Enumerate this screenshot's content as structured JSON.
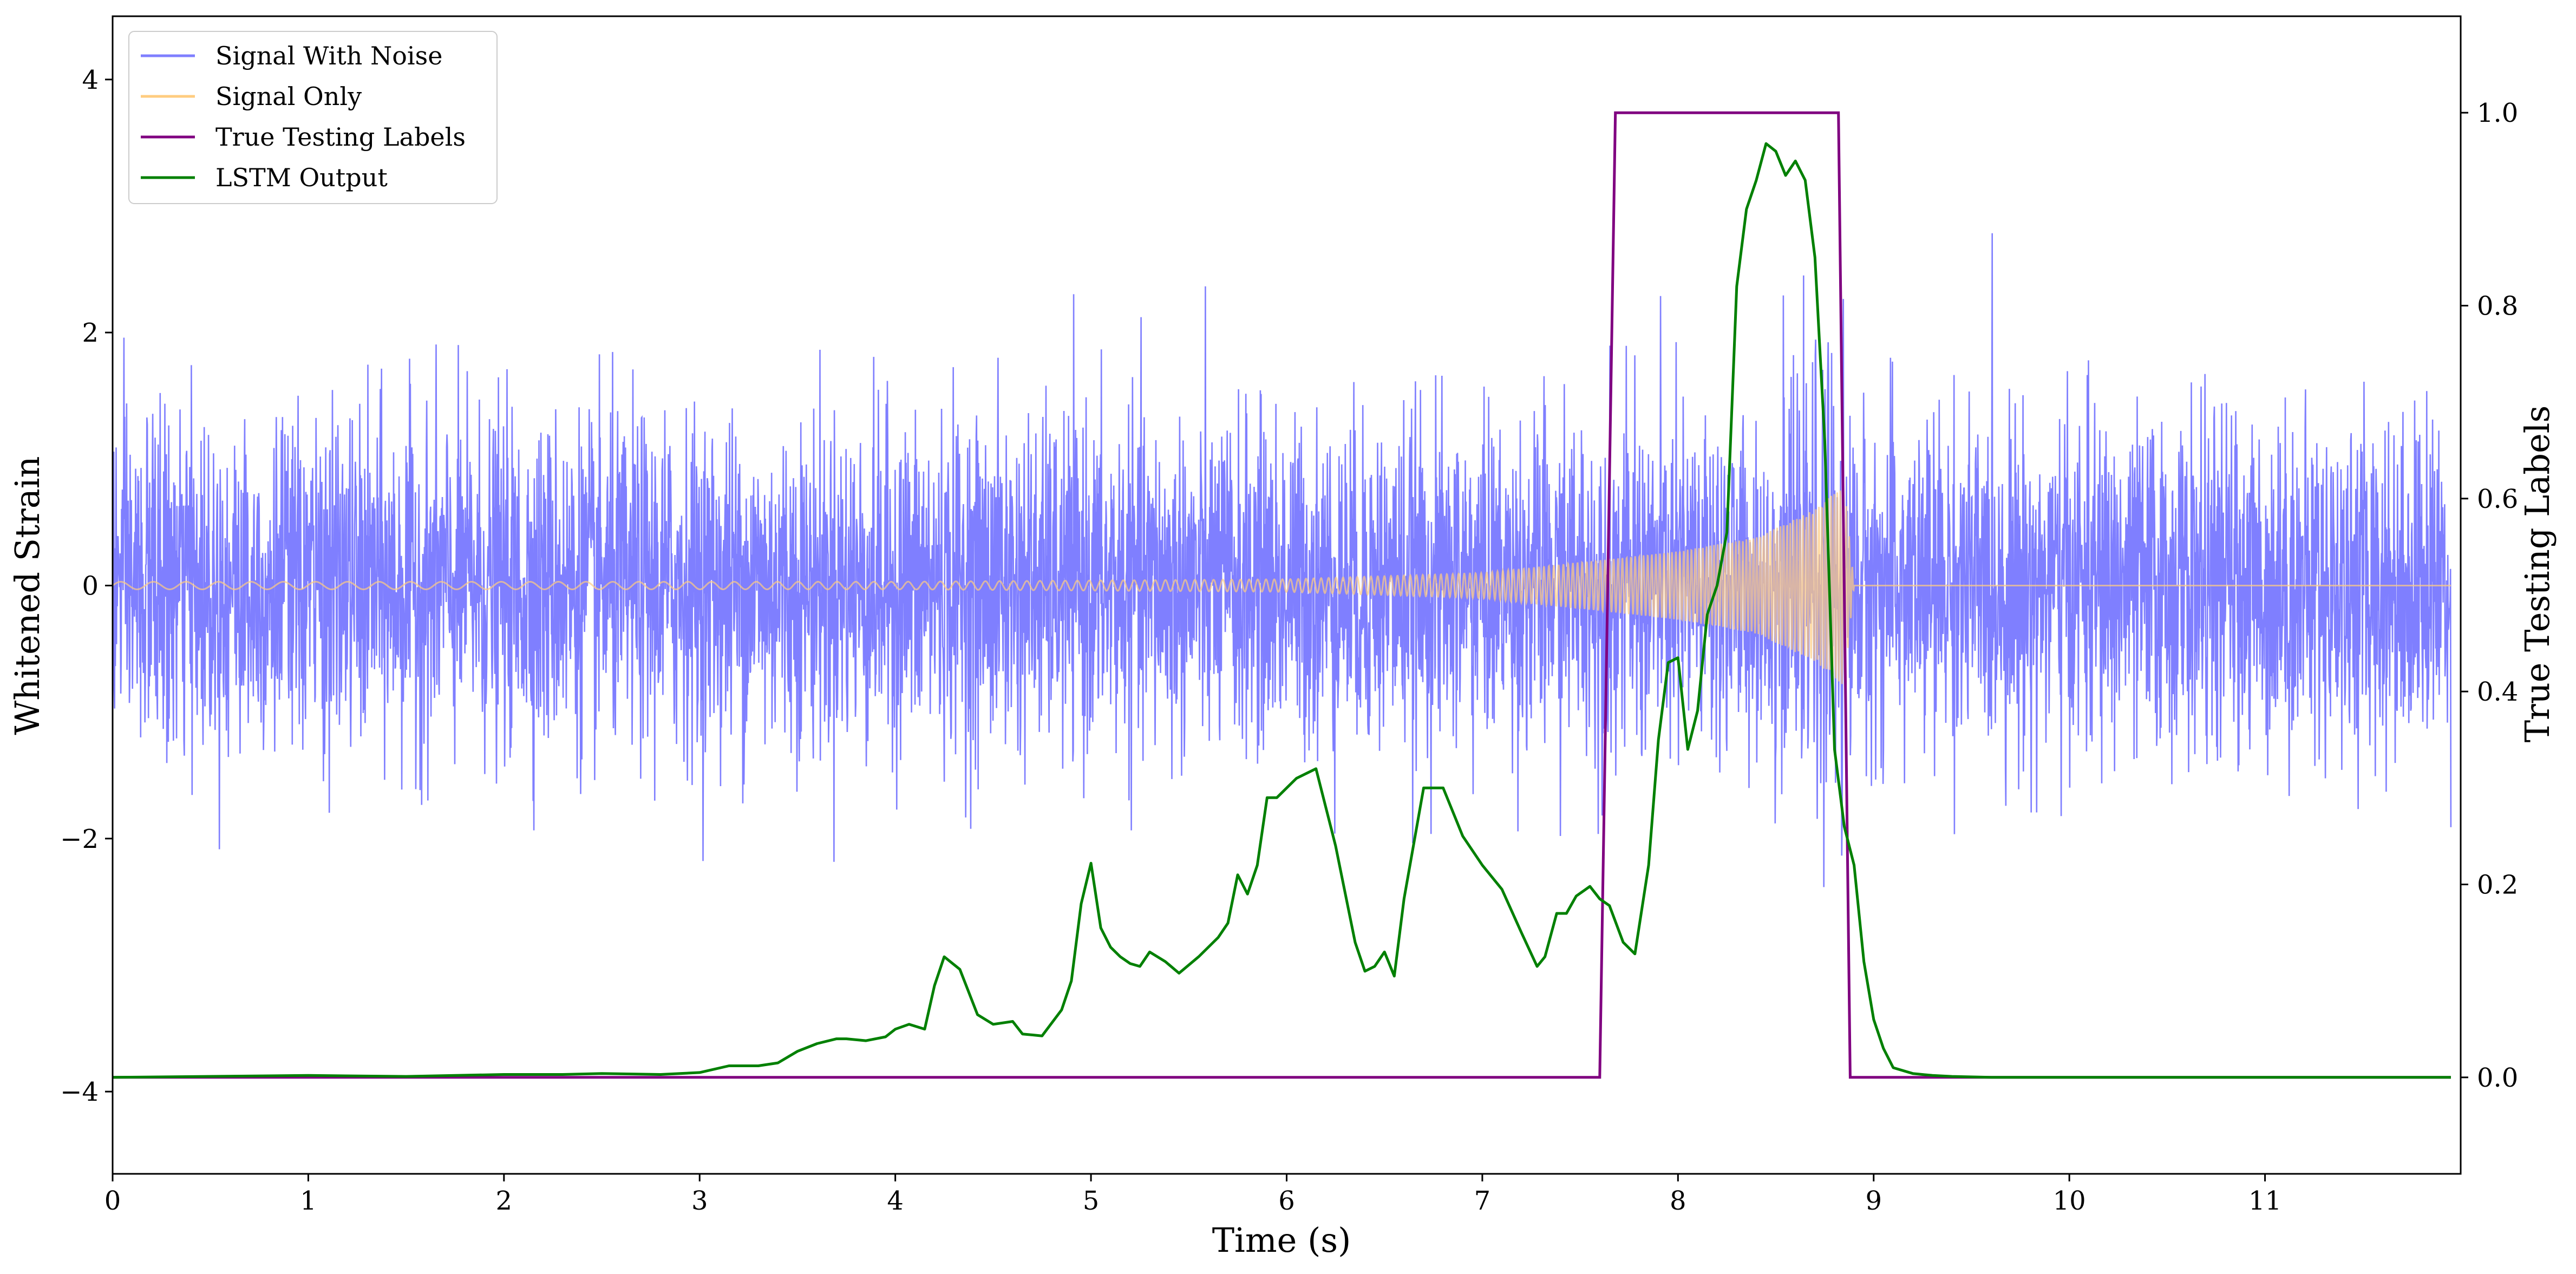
{
  "chart_data": {
    "type": "line",
    "xlabel": "Time (s)",
    "ylabel": "Whitened Strain",
    "y2label": "True Testing Labels",
    "xlim": [
      0,
      12
    ],
    "ylim": [
      -4.65,
      4.5
    ],
    "y2lim": [
      -0.1,
      1.1
    ],
    "xticks": [
      "0",
      "1",
      "2",
      "3",
      "4",
      "5",
      "6",
      "7",
      "8",
      "9",
      "10",
      "11"
    ],
    "yticks": [
      "−4",
      "−2",
      "0",
      "2",
      "4"
    ],
    "y2ticks": [
      "0.0",
      "0.2",
      "0.4",
      "0.6",
      "0.8",
      "1.0"
    ],
    "grid": false,
    "legend": "top-left",
    "colors": {
      "noise": "#7f7fff",
      "signal": "#ffcc80",
      "labels": "#800080",
      "lstm": "#008000"
    },
    "series": [
      {
        "name": "Signal With Noise",
        "axis": "left",
        "description_values": {
          "std": 0.65,
          "clip_range": [
            -4.25,
            4.0
          ]
        }
      },
      {
        "name": "Signal Only",
        "axis": "left",
        "envelope": {
          "x": [
            0,
            2,
            4,
            6,
            7,
            7.6,
            8,
            8.4,
            8.7,
            8.85,
            8.9,
            12
          ],
          "amp": [
            0.03,
            0.03,
            0.03,
            0.05,
            0.1,
            0.2,
            0.27,
            0.38,
            0.6,
            0.8,
            0,
            0
          ]
        }
      },
      {
        "name": "True Testing Labels",
        "axis": "right",
        "x": [
          0,
          7.6,
          7.68,
          8.82,
          8.88,
          11.95
        ],
        "y": [
          0,
          0,
          1,
          1,
          0,
          0
        ]
      },
      {
        "name": "LSTM Output",
        "axis": "right",
        "x": [
          0,
          1,
          1.5,
          2,
          2.3,
          2.5,
          2.8,
          3.0,
          3.15,
          3.3,
          3.4,
          3.5,
          3.6,
          3.7,
          3.75,
          3.85,
          3.95,
          4.0,
          4.07,
          4.15,
          4.2,
          4.25,
          4.33,
          4.42,
          4.5,
          4.6,
          4.65,
          4.75,
          4.85,
          4.9,
          4.95,
          5.0,
          5.05,
          5.1,
          5.15,
          5.2,
          5.25,
          5.3,
          5.38,
          5.45,
          5.55,
          5.65,
          5.7,
          5.75,
          5.8,
          5.85,
          5.9,
          5.95,
          6.0,
          6.05,
          6.15,
          6.25,
          6.35,
          6.4,
          6.45,
          6.5,
          6.55,
          6.6,
          6.7,
          6.8,
          6.9,
          7.0,
          7.1,
          7.2,
          7.28,
          7.32,
          7.38,
          7.43,
          7.48,
          7.55,
          7.6,
          7.65,
          7.72,
          7.78,
          7.85,
          7.9,
          7.95,
          8.0,
          8.05,
          8.1,
          8.15,
          8.2,
          8.25,
          8.3,
          8.35,
          8.4,
          8.45,
          8.5,
          8.55,
          8.6,
          8.65,
          8.7,
          8.75,
          8.8,
          8.85,
          8.9,
          8.95,
          9.0,
          9.05,
          9.1,
          9.2,
          9.3,
          9.4,
          9.6,
          10.0,
          11.0,
          11.95
        ],
        "y": [
          0.0,
          0.002,
          0.001,
          0.003,
          0.003,
          0.004,
          0.003,
          0.005,
          0.012,
          0.012,
          0.015,
          0.027,
          0.035,
          0.04,
          0.04,
          0.038,
          0.042,
          0.05,
          0.055,
          0.05,
          0.095,
          0.125,
          0.112,
          0.065,
          0.055,
          0.058,
          0.045,
          0.043,
          0.07,
          0.1,
          0.18,
          0.222,
          0.155,
          0.135,
          0.125,
          0.118,
          0.115,
          0.13,
          0.12,
          0.108,
          0.125,
          0.145,
          0.16,
          0.21,
          0.19,
          0.22,
          0.29,
          0.29,
          0.3,
          0.31,
          0.32,
          0.24,
          0.14,
          0.11,
          0.115,
          0.13,
          0.105,
          0.185,
          0.3,
          0.3,
          0.25,
          0.22,
          0.195,
          0.15,
          0.115,
          0.125,
          0.17,
          0.17,
          0.188,
          0.198,
          0.185,
          0.178,
          0.14,
          0.128,
          0.22,
          0.35,
          0.43,
          0.435,
          0.34,
          0.38,
          0.48,
          0.51,
          0.565,
          0.82,
          0.9,
          0.93,
          0.968,
          0.96,
          0.935,
          0.95,
          0.93,
          0.85,
          0.66,
          0.34,
          0.26,
          0.22,
          0.12,
          0.06,
          0.03,
          0.01,
          0.004,
          0.002,
          0.001,
          0.0,
          0.0,
          0.0,
          0.0
        ]
      }
    ]
  }
}
